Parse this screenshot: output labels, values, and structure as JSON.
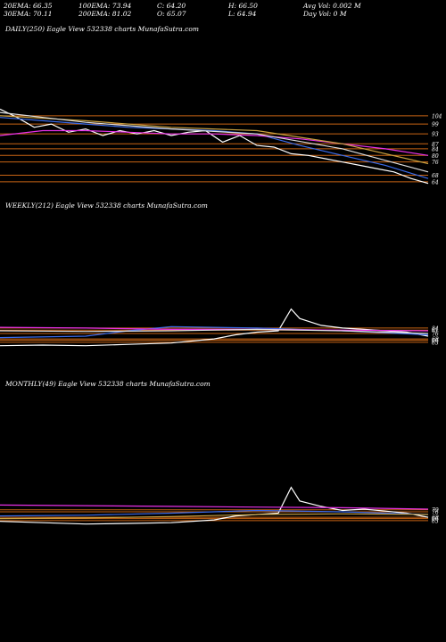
{
  "header": {
    "col1": [
      "20EMA: 66.35",
      "30EMA: 70.11"
    ],
    "col2": [
      "100EMA: 73.94",
      "200EMA: 81.02"
    ],
    "col3": [
      "C: 64.20",
      "O: 65.07"
    ],
    "col4": [
      "H: 66.50",
      "L: 64.94"
    ],
    "col5": [
      "Avg Vol: 0.002  M",
      "Day Vol: 0  M"
    ]
  },
  "chart_data": [
    {
      "type": "line",
      "title": "DAILY(250) Eagle  View  532338 charts MunafaSutra.com",
      "ylim": [
        58,
        112
      ],
      "price_levels": [
        104,
        99,
        93,
        87,
        84,
        80,
        76,
        68,
        64
      ],
      "level_labels": [
        "104",
        "99",
        "93",
        "87",
        "84",
        "80",
        "76",
        "68",
        "64"
      ],
      "series": [
        {
          "name": "",
          "color": "#ffffff",
          "x": [
            0,
            4,
            8,
            12,
            16,
            20,
            24,
            28,
            32,
            36,
            40,
            44,
            48,
            52,
            56,
            60,
            64,
            68,
            72,
            76,
            80,
            84,
            88,
            92,
            96,
            100
          ],
          "values": [
            108,
            103,
            97,
            99,
            94,
            96,
            92,
            95,
            93,
            95,
            92,
            94,
            95,
            88,
            92,
            86,
            85,
            81,
            80,
            78,
            76,
            74,
            72,
            70,
            66,
            63
          ]
        },
        {
          "name": "",
          "color": "#3a6ae8",
          "x": [
            0,
            10,
            20,
            30,
            40,
            50,
            60,
            70,
            80,
            90,
            100
          ],
          "values": [
            103,
            101,
            99,
            97,
            96,
            95,
            93,
            86,
            80,
            74,
            66
          ]
        },
        {
          "name": "",
          "color": "#e830e8",
          "x": [
            0,
            10,
            20,
            30,
            40,
            50,
            60,
            70,
            80,
            90,
            100
          ],
          "values": [
            92,
            95,
            95,
            94,
            93,
            93,
            92,
            90,
            87,
            84,
            80
          ]
        },
        {
          "name": "",
          "color": "#c8a040",
          "x": [
            0,
            20,
            40,
            60,
            80,
            100
          ],
          "values": [
            104,
            101,
            97,
            95,
            87,
            75
          ]
        },
        {
          "name": "",
          "color": "#dddddd",
          "x": [
            0,
            20,
            40,
            60,
            80,
            100
          ],
          "values": [
            106,
            100,
            96,
            93,
            84,
            70
          ]
        }
      ]
    },
    {
      "type": "line",
      "title": "WEEKLY(212) Eagle  View  532338 charts MunafaSutra.com",
      "ylim": [
        55,
        160
      ],
      "price_levels": [
        84,
        81,
        76,
        68,
        66,
        63
      ],
      "level_labels": [
        "84",
        "81",
        "76",
        "68",
        "66",
        "63"
      ],
      "series": [
        {
          "name": "",
          "color": "#ffffff",
          "x": [
            0,
            10,
            20,
            30,
            40,
            50,
            55,
            60,
            65,
            68,
            70,
            75,
            80,
            85,
            90,
            95,
            100
          ],
          "values": [
            58,
            59,
            58,
            60,
            62,
            68,
            74,
            78,
            80,
            112,
            98,
            88,
            84,
            82,
            80,
            78,
            72
          ]
        },
        {
          "name": "",
          "color": "#3a6ae8",
          "x": [
            0,
            20,
            30,
            40,
            60,
            80,
            100
          ],
          "values": [
            70,
            72,
            80,
            86,
            84,
            80,
            74
          ]
        },
        {
          "name": "",
          "color": "#e830e8",
          "x": [
            0,
            20,
            40,
            60,
            80,
            100
          ],
          "values": [
            85,
            84,
            82,
            82,
            81,
            80
          ]
        },
        {
          "name": "",
          "color": "#dddddd",
          "x": [
            0,
            20,
            40,
            60,
            80,
            100
          ],
          "values": [
            80,
            79,
            80,
            82,
            80,
            76
          ]
        }
      ]
    },
    {
      "type": "line",
      "title": "MONTHLY(49) Eagle  View  532338 charts MunafaSutra.com",
      "ylim": [
        55,
        160
      ],
      "price_levels": [
        79,
        76,
        68,
        66,
        63
      ],
      "level_labels": [
        "79",
        "76",
        "68",
        "66",
        "63"
      ],
      "series": [
        {
          "name": "",
          "color": "#ffffff",
          "x": [
            0,
            10,
            20,
            30,
            40,
            50,
            55,
            60,
            65,
            68,
            70,
            75,
            80,
            85,
            90,
            95,
            100
          ],
          "values": [
            62,
            60,
            58,
            59,
            60,
            64,
            70,
            72,
            74,
            112,
            92,
            84,
            78,
            80,
            77,
            74,
            68
          ]
        },
        {
          "name": "",
          "color": "#3a6ae8",
          "x": [
            0,
            20,
            40,
            60,
            80,
            100
          ],
          "values": [
            70,
            71,
            74,
            78,
            76,
            72
          ]
        },
        {
          "name": "",
          "color": "#e830e8",
          "x": [
            0,
            20,
            40,
            60,
            80,
            100
          ],
          "values": [
            86,
            85,
            84,
            83,
            82,
            80
          ]
        },
        {
          "name": "",
          "color": "#c8a040",
          "x": [
            0,
            20,
            40,
            60,
            80,
            100
          ],
          "values": [
            66,
            67,
            69,
            72,
            73,
            72
          ]
        }
      ]
    }
  ],
  "colors": {
    "background": "#000000",
    "level_line": "#c86414",
    "text": "#ffffff"
  }
}
